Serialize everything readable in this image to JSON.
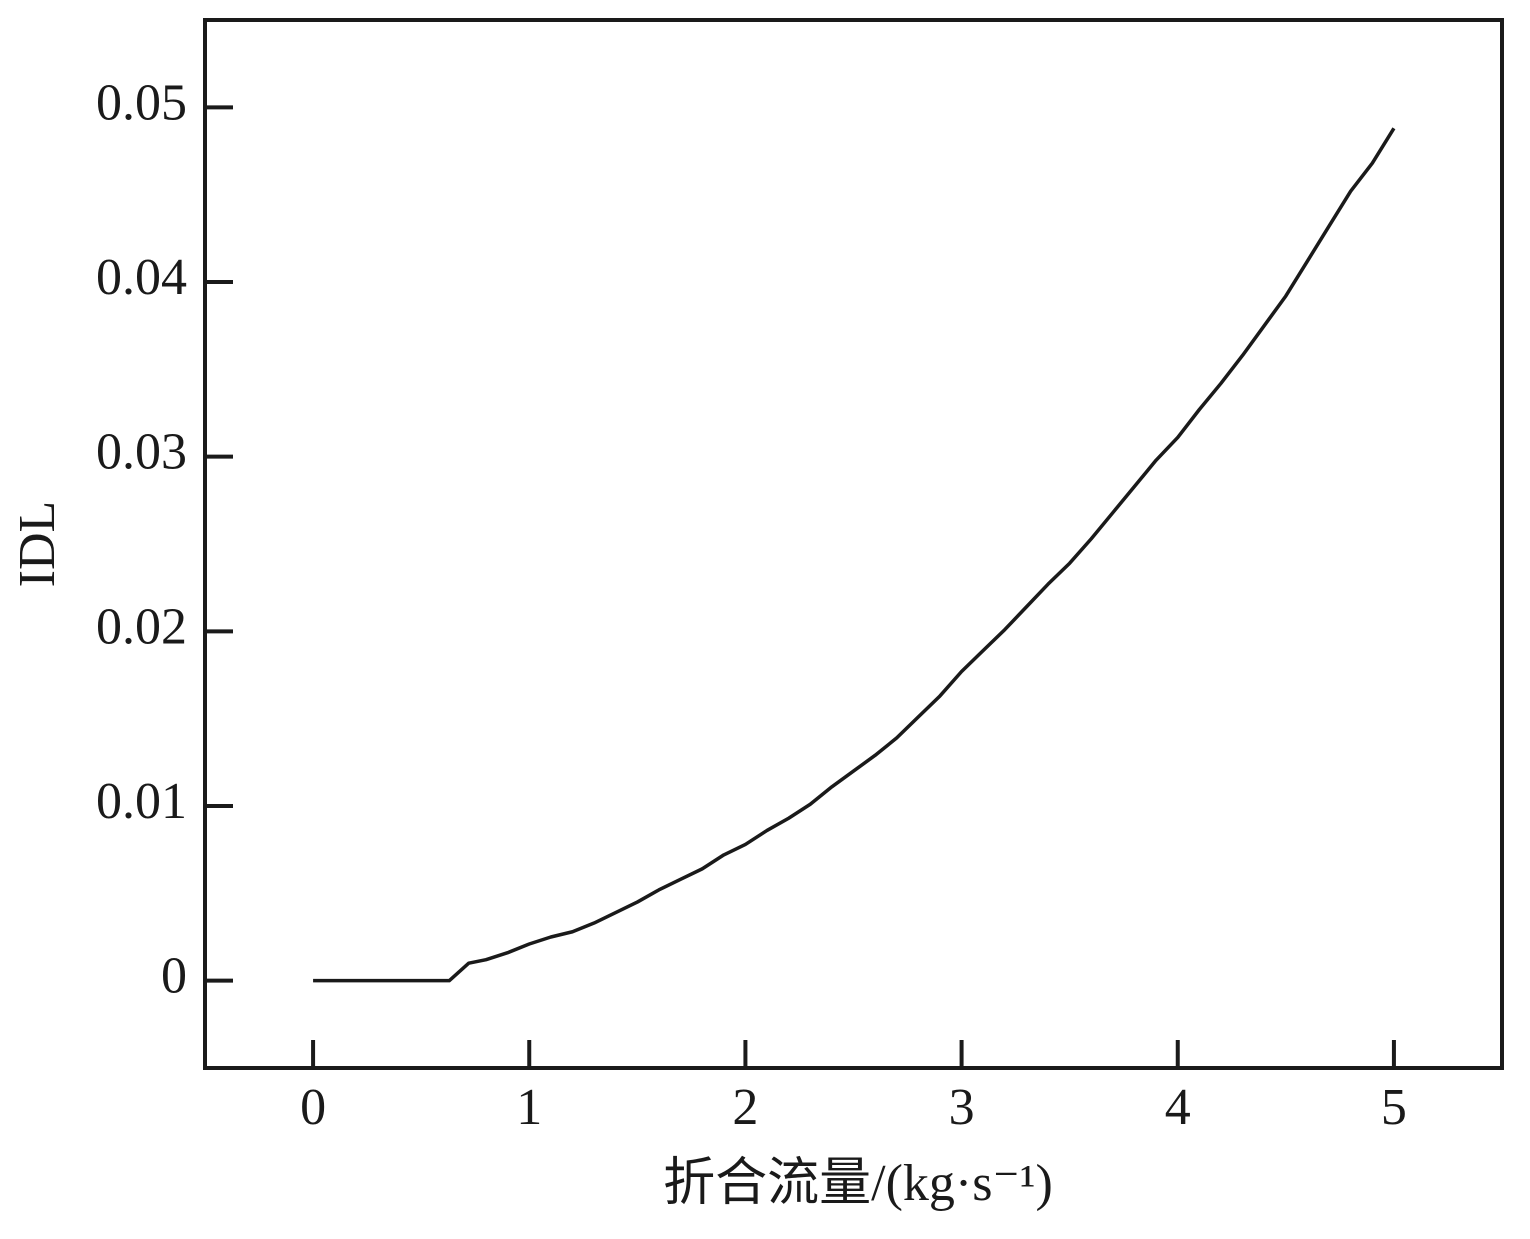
{
  "chart_data": {
    "type": "line",
    "xlabel": "折合流量/(kg·s⁻¹)",
    "ylabel": "IDL",
    "xlim": [
      -0.5,
      5.5
    ],
    "xticks": [
      0,
      1,
      2,
      3,
      4,
      5
    ],
    "ylim": [
      -0.005,
      0.055
    ],
    "yticks": [
      0,
      0.01,
      0.02,
      0.03,
      0.04,
      0.05
    ],
    "series": [
      {
        "color": "#1a1a1a",
        "x": [
          0,
          0.63,
          0.72,
          0.8,
          0.9,
          1.0,
          1.1,
          1.2,
          1.3,
          1.4,
          1.5,
          1.6,
          1.7,
          1.8,
          1.9,
          2.0,
          2.1,
          2.2,
          2.3,
          2.4,
          2.5,
          2.6,
          2.7,
          2.8,
          2.9,
          3.0,
          3.1,
          3.2,
          3.3,
          3.4,
          3.5,
          3.6,
          3.7,
          3.8,
          3.9,
          4.0,
          4.1,
          4.2,
          4.3,
          4.4,
          4.5,
          4.6,
          4.7,
          4.8,
          4.9,
          5.0
        ],
        "values": [
          0,
          0,
          0.001,
          0.0012,
          0.0016,
          0.0021,
          0.0025,
          0.0028,
          0.0033,
          0.0039,
          0.0045,
          0.0052,
          0.0058,
          0.0064,
          0.0072,
          0.0078,
          0.0086,
          0.0093,
          0.0101,
          0.0111,
          0.012,
          0.0129,
          0.0139,
          0.0151,
          0.0163,
          0.0177,
          0.0189,
          0.0201,
          0.0214,
          0.0227,
          0.0239,
          0.0253,
          0.0268,
          0.0283,
          0.0298,
          0.0311,
          0.0327,
          0.0342,
          0.0358,
          0.0375,
          0.0392,
          0.0412,
          0.0432,
          0.0452,
          0.0468,
          0.0488
        ]
      }
    ]
  }
}
